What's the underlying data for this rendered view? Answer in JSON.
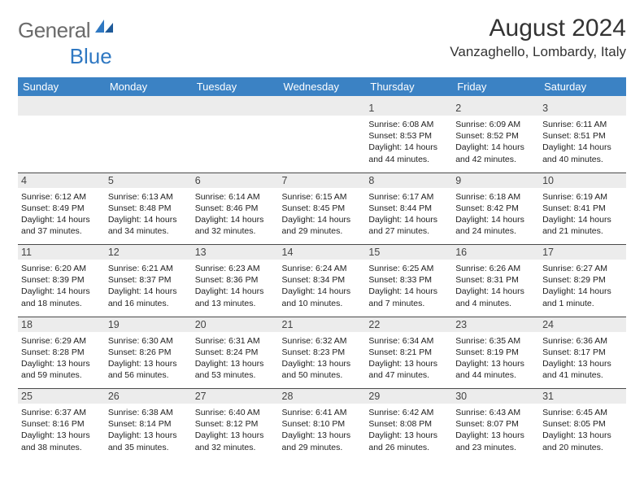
{
  "brand": {
    "word1": "General",
    "word2": "Blue"
  },
  "title": "August 2024",
  "location": "Vanzaghello, Lombardy, Italy",
  "colors": {
    "header_bg": "#3b82c4",
    "header_fg": "#ffffff",
    "daynum_bg": "#ececec",
    "text": "#222222",
    "rule": "#4a4a4a",
    "logo_gray": "#6b6b6b",
    "logo_blue": "#2f78c2"
  },
  "typography": {
    "title_fontsize": 30,
    "location_fontsize": 17,
    "weekday_fontsize": 13,
    "daynum_fontsize": 12.5,
    "body_fontsize": 10.5
  },
  "weekdays": [
    "Sunday",
    "Monday",
    "Tuesday",
    "Wednesday",
    "Thursday",
    "Friday",
    "Saturday"
  ],
  "weeks": [
    [
      null,
      null,
      null,
      null,
      {
        "n": "1",
        "sunrise": "6:08 AM",
        "sunset": "8:53 PM",
        "day_h": 14,
        "day_m": 44
      },
      {
        "n": "2",
        "sunrise": "6:09 AM",
        "sunset": "8:52 PM",
        "day_h": 14,
        "day_m": 42
      },
      {
        "n": "3",
        "sunrise": "6:11 AM",
        "sunset": "8:51 PM",
        "day_h": 14,
        "day_m": 40
      }
    ],
    [
      {
        "n": "4",
        "sunrise": "6:12 AM",
        "sunset": "8:49 PM",
        "day_h": 14,
        "day_m": 37
      },
      {
        "n": "5",
        "sunrise": "6:13 AM",
        "sunset": "8:48 PM",
        "day_h": 14,
        "day_m": 34
      },
      {
        "n": "6",
        "sunrise": "6:14 AM",
        "sunset": "8:46 PM",
        "day_h": 14,
        "day_m": 32
      },
      {
        "n": "7",
        "sunrise": "6:15 AM",
        "sunset": "8:45 PM",
        "day_h": 14,
        "day_m": 29
      },
      {
        "n": "8",
        "sunrise": "6:17 AM",
        "sunset": "8:44 PM",
        "day_h": 14,
        "day_m": 27
      },
      {
        "n": "9",
        "sunrise": "6:18 AM",
        "sunset": "8:42 PM",
        "day_h": 14,
        "day_m": 24
      },
      {
        "n": "10",
        "sunrise": "6:19 AM",
        "sunset": "8:41 PM",
        "day_h": 14,
        "day_m": 21
      }
    ],
    [
      {
        "n": "11",
        "sunrise": "6:20 AM",
        "sunset": "8:39 PM",
        "day_h": 14,
        "day_m": 18
      },
      {
        "n": "12",
        "sunrise": "6:21 AM",
        "sunset": "8:37 PM",
        "day_h": 14,
        "day_m": 16
      },
      {
        "n": "13",
        "sunrise": "6:23 AM",
        "sunset": "8:36 PM",
        "day_h": 14,
        "day_m": 13
      },
      {
        "n": "14",
        "sunrise": "6:24 AM",
        "sunset": "8:34 PM",
        "day_h": 14,
        "day_m": 10
      },
      {
        "n": "15",
        "sunrise": "6:25 AM",
        "sunset": "8:33 PM",
        "day_h": 14,
        "day_m": 7
      },
      {
        "n": "16",
        "sunrise": "6:26 AM",
        "sunset": "8:31 PM",
        "day_h": 14,
        "day_m": 4
      },
      {
        "n": "17",
        "sunrise": "6:27 AM",
        "sunset": "8:29 PM",
        "day_h": 14,
        "day_m": 1
      }
    ],
    [
      {
        "n": "18",
        "sunrise": "6:29 AM",
        "sunset": "8:28 PM",
        "day_h": 13,
        "day_m": 59
      },
      {
        "n": "19",
        "sunrise": "6:30 AM",
        "sunset": "8:26 PM",
        "day_h": 13,
        "day_m": 56
      },
      {
        "n": "20",
        "sunrise": "6:31 AM",
        "sunset": "8:24 PM",
        "day_h": 13,
        "day_m": 53
      },
      {
        "n": "21",
        "sunrise": "6:32 AM",
        "sunset": "8:23 PM",
        "day_h": 13,
        "day_m": 50
      },
      {
        "n": "22",
        "sunrise": "6:34 AM",
        "sunset": "8:21 PM",
        "day_h": 13,
        "day_m": 47
      },
      {
        "n": "23",
        "sunrise": "6:35 AM",
        "sunset": "8:19 PM",
        "day_h": 13,
        "day_m": 44
      },
      {
        "n": "24",
        "sunrise": "6:36 AM",
        "sunset": "8:17 PM",
        "day_h": 13,
        "day_m": 41
      }
    ],
    [
      {
        "n": "25",
        "sunrise": "6:37 AM",
        "sunset": "8:16 PM",
        "day_h": 13,
        "day_m": 38
      },
      {
        "n": "26",
        "sunrise": "6:38 AM",
        "sunset": "8:14 PM",
        "day_h": 13,
        "day_m": 35
      },
      {
        "n": "27",
        "sunrise": "6:40 AM",
        "sunset": "8:12 PM",
        "day_h": 13,
        "day_m": 32
      },
      {
        "n": "28",
        "sunrise": "6:41 AM",
        "sunset": "8:10 PM",
        "day_h": 13,
        "day_m": 29
      },
      {
        "n": "29",
        "sunrise": "6:42 AM",
        "sunset": "8:08 PM",
        "day_h": 13,
        "day_m": 26
      },
      {
        "n": "30",
        "sunrise": "6:43 AM",
        "sunset": "8:07 PM",
        "day_h": 13,
        "day_m": 23
      },
      {
        "n": "31",
        "sunrise": "6:45 AM",
        "sunset": "8:05 PM",
        "day_h": 13,
        "day_m": 20
      }
    ]
  ]
}
